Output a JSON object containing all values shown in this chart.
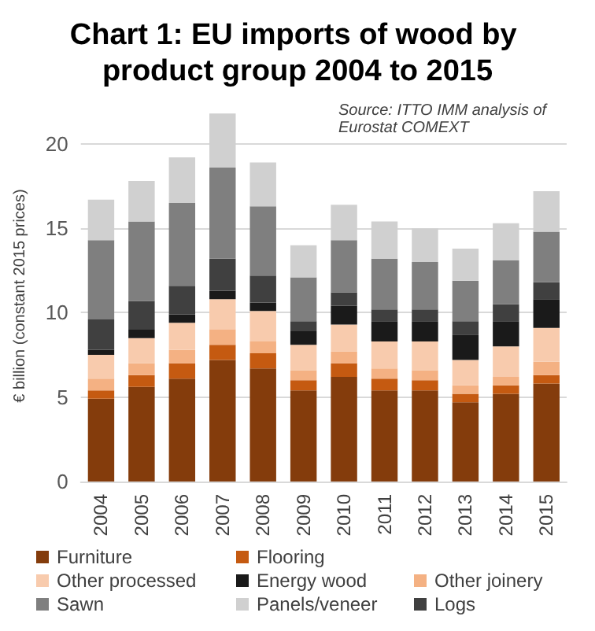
{
  "chart_data": {
    "type": "bar",
    "title": "Chart 1: EU imports of wood by product group 2004 to 2015",
    "ylabel": "€ billion (constant 2015 prices)",
    "annotations": [
      "Source: ITTO IMM analysis of Eurostat COMEXT"
    ],
    "stacked": true,
    "categories": [
      "2004",
      "2005",
      "2006",
      "2007",
      "2008",
      "2009",
      "2010",
      "2011",
      "2012",
      "2013",
      "2014",
      "2015"
    ],
    "series": [
      {
        "name": "Furniture",
        "color": "#843c0c",
        "values": [
          4.9,
          5.6,
          6.1,
          7.2,
          6.7,
          5.4,
          6.2,
          5.4,
          5.4,
          4.7,
          5.2,
          5.8
        ]
      },
      {
        "name": "Flooring",
        "color": "#c55a11",
        "values": [
          0.5,
          0.7,
          0.9,
          0.9,
          0.9,
          0.6,
          0.8,
          0.7,
          0.6,
          0.5,
          0.5,
          0.5
        ]
      },
      {
        "name": "Other joinery",
        "color": "#f4b183",
        "values": [
          0.7,
          0.7,
          0.8,
          0.9,
          0.7,
          0.6,
          0.7,
          0.6,
          0.6,
          0.5,
          0.5,
          0.8
        ]
      },
      {
        "name": "Other processed",
        "color": "#f8cbad",
        "values": [
          1.4,
          1.5,
          1.6,
          1.8,
          1.8,
          1.5,
          1.6,
          1.6,
          1.7,
          1.5,
          1.8,
          2.0
        ]
      },
      {
        "name": "Energy wood",
        "color": "#1a1a1a",
        "values": [
          0.3,
          0.5,
          0.5,
          0.5,
          0.5,
          0.8,
          1.1,
          1.2,
          1.2,
          1.5,
          1.5,
          1.7
        ]
      },
      {
        "name": "Logs",
        "color": "#404040",
        "values": [
          1.8,
          1.7,
          1.7,
          1.9,
          1.6,
          0.6,
          0.8,
          0.7,
          0.7,
          0.8,
          1.0,
          1.0
        ]
      },
      {
        "name": "Sawn",
        "color": "#7f7f7f",
        "values": [
          4.7,
          4.7,
          4.9,
          5.4,
          4.1,
          2.6,
          3.1,
          3.0,
          2.8,
          2.4,
          2.6,
          3.0
        ]
      },
      {
        "name": "Panels/veneer",
        "color": "#d0d0d0",
        "values": [
          2.4,
          2.4,
          2.7,
          3.2,
          2.6,
          1.9,
          2.1,
          2.2,
          2.0,
          1.9,
          2.2,
          2.4
        ]
      }
    ],
    "ylim": [
      0,
      22
    ],
    "yticks": [
      0,
      5,
      10,
      15,
      20
    ],
    "grid": "y",
    "legend": "bottom"
  }
}
